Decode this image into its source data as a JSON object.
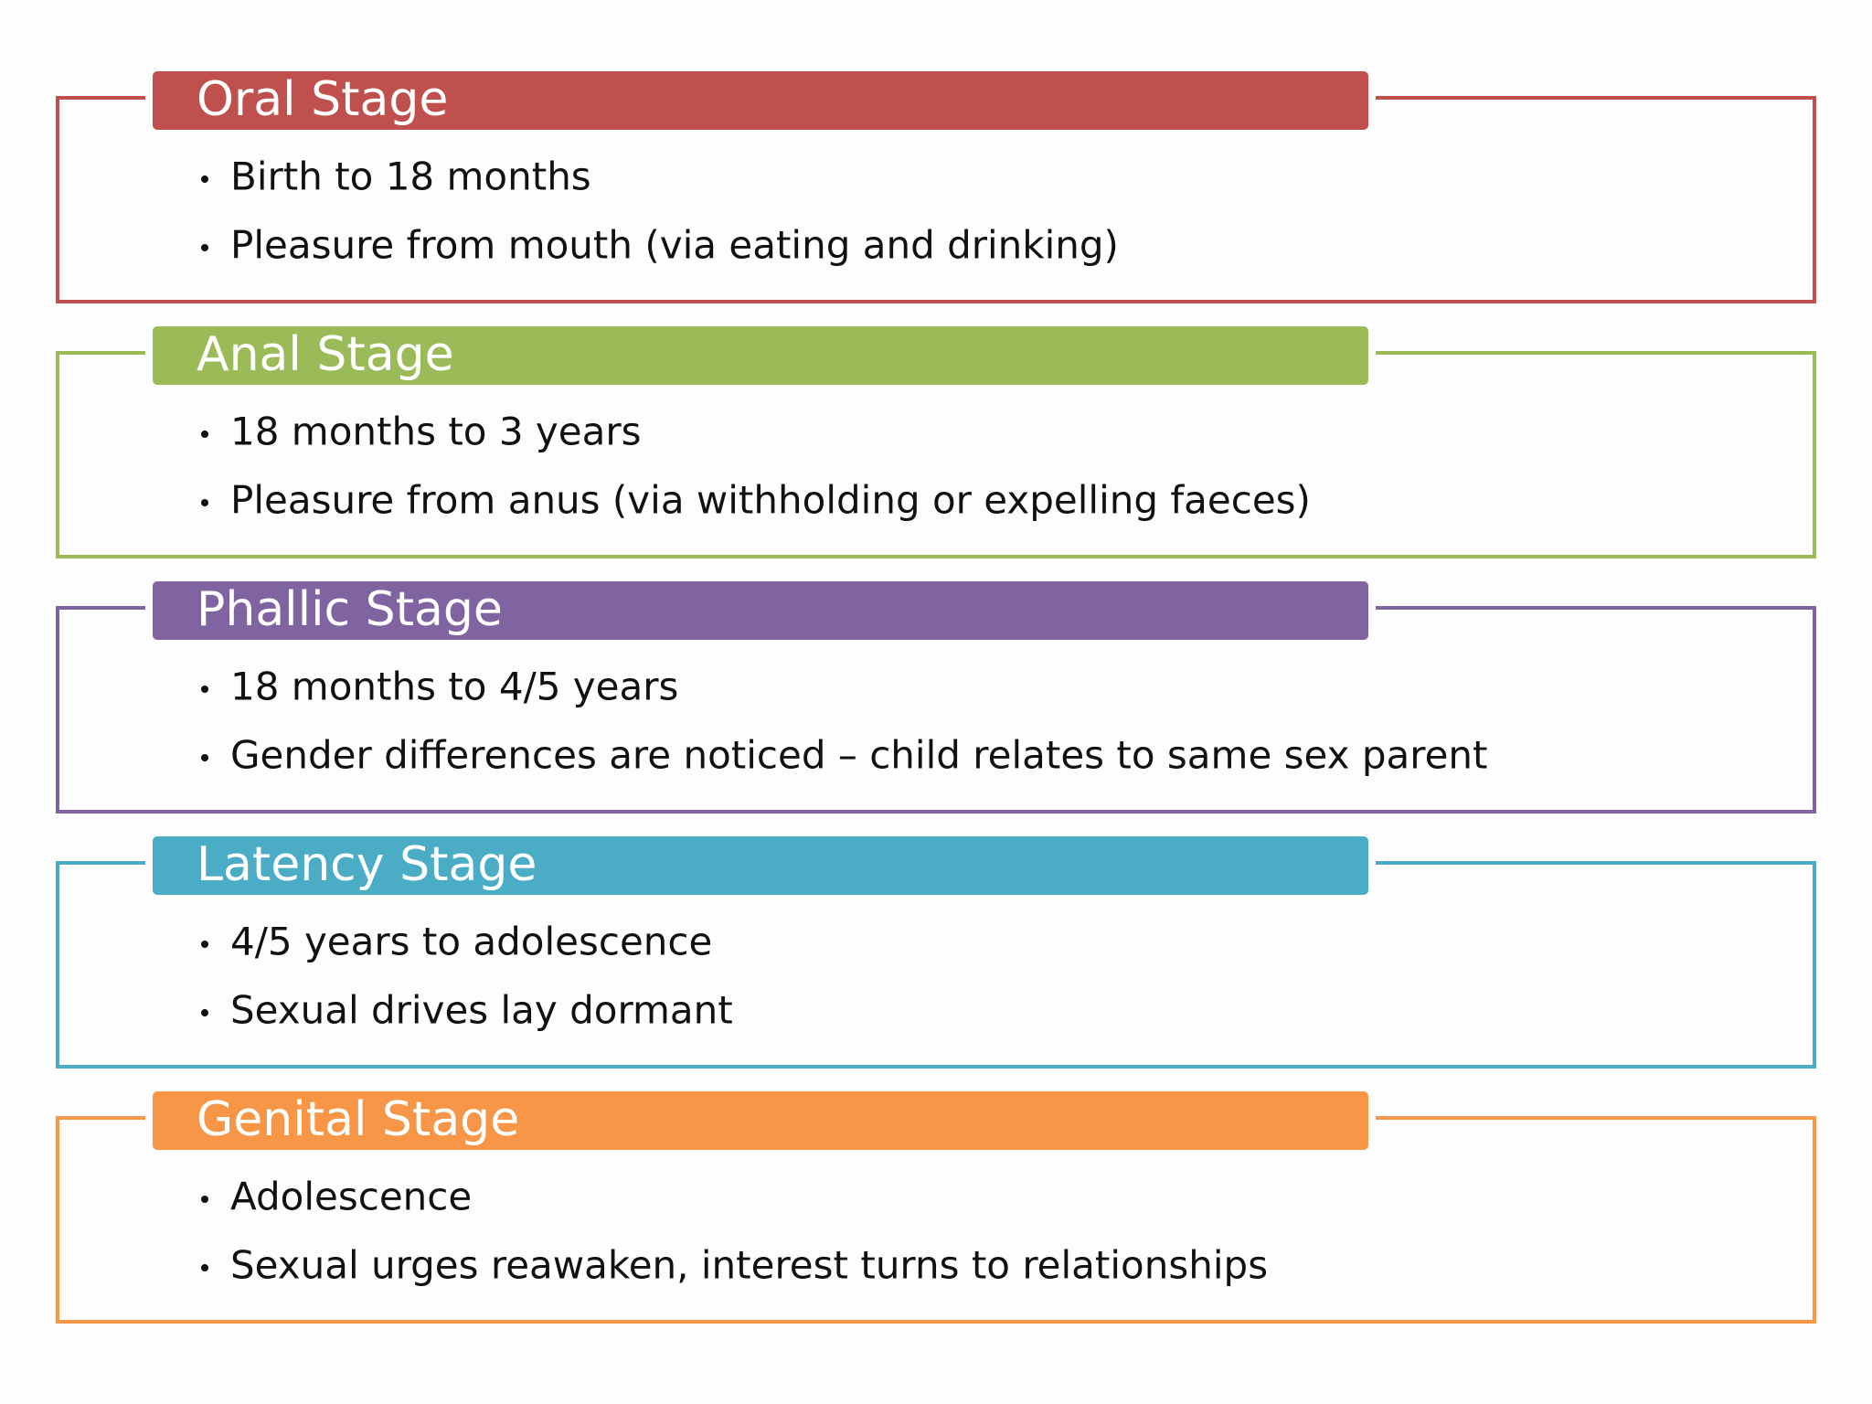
{
  "stages": [
    {
      "title": "Oral Stage",
      "bullets": [
        "Birth to 18 months",
        "Pleasure from mouth (via eating and drinking)"
      ]
    },
    {
      "title": "Anal Stage",
      "bullets": [
        "18 months to 3 years",
        "Pleasure from anus (via withholding or expelling faeces)"
      ]
    },
    {
      "title": "Phallic Stage",
      "bullets": [
        "18 months to 4/5 years",
        "Gender differences are noticed – child relates to same sex parent"
      ]
    },
    {
      "title": "Latency Stage",
      "bullets": [
        "4/5 years to adolescence",
        "Sexual drives lay dormant"
      ]
    },
    {
      "title": "Genital Stage",
      "bullets": [
        "Adolescence",
        "Sexual urges reawaken, interest turns to relationships"
      ]
    }
  ]
}
